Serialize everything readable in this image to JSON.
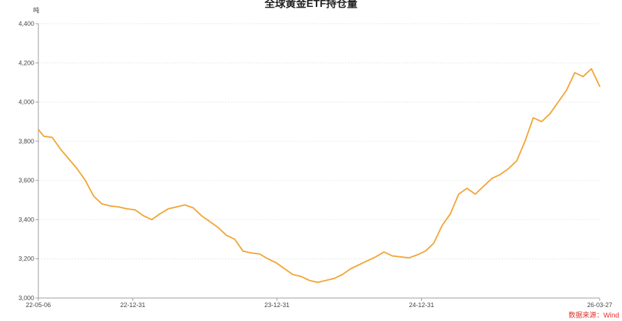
{
  "chart_data": {
    "type": "line",
    "title": "全球黄金ETF持仓量",
    "ylabel": "吨",
    "xlabel": "",
    "source": "数据来源：Wind",
    "color": "#f2a73a",
    "ylim": [
      3000,
      4400
    ],
    "yticks": [
      3000,
      3200,
      3400,
      3600,
      3800,
      4000,
      4200,
      4400
    ],
    "ytick_labels": [
      "3,000",
      "3,200",
      "3,400",
      "3,600",
      "3,800",
      "4,000",
      "4,200",
      "4,400"
    ],
    "xticks": [
      "22-05-06",
      "22-12-31",
      "23-12-31",
      "24-12-31",
      "26-03-27"
    ],
    "grid": true,
    "series": [
      {
        "x": [
          "22-05-06",
          "22-05-20",
          "22-06-10",
          "22-07-01",
          "22-07-22",
          "22-08-12",
          "22-09-02",
          "22-09-23",
          "22-10-14",
          "22-11-04",
          "22-11-25",
          "22-12-16",
          "23-01-06",
          "23-01-27",
          "23-02-17",
          "23-03-10",
          "23-03-31",
          "23-04-21",
          "23-05-12",
          "23-06-02",
          "23-06-23",
          "23-07-14",
          "23-08-04",
          "23-08-25",
          "23-09-15",
          "23-10-06",
          "23-10-27",
          "23-11-17",
          "23-12-08",
          "23-12-29",
          "24-01-19",
          "24-02-09",
          "24-03-01",
          "24-03-22",
          "24-04-12",
          "24-05-03",
          "24-05-24",
          "24-06-14",
          "24-07-05",
          "24-07-26",
          "24-08-16",
          "24-09-06",
          "24-09-27",
          "24-10-18",
          "24-11-08",
          "24-11-29",
          "24-12-20",
          "25-01-10",
          "25-01-31",
          "25-02-21",
          "25-03-14",
          "25-04-04",
          "25-04-25",
          "25-05-16",
          "25-06-06",
          "25-06-27",
          "25-07-18",
          "25-08-08",
          "25-08-29",
          "25-09-19",
          "25-10-10",
          "25-10-31",
          "25-11-21",
          "25-12-12",
          "26-01-02",
          "26-01-23",
          "26-02-13",
          "26-03-06",
          "26-03-27"
        ],
        "y": [
          3860,
          3825,
          3820,
          3760,
          3710,
          3660,
          3600,
          3520,
          3480,
          3470,
          3465,
          3455,
          3450,
          3420,
          3400,
          3430,
          3455,
          3465,
          3475,
          3460,
          3420,
          3390,
          3360,
          3320,
          3300,
          3240,
          3230,
          3225,
          3200,
          3180,
          3150,
          3120,
          3110,
          3090,
          3080,
          3090,
          3100,
          3120,
          3150,
          3170,
          3190,
          3210,
          3235,
          3215,
          3210,
          3205,
          3220,
          3240,
          3280,
          3370,
          3430,
          3530,
          3560,
          3530,
          3570,
          3610,
          3630,
          3660,
          3700,
          3800,
          3920,
          3900,
          3940,
          4000,
          4060,
          4150,
          4130,
          4170,
          4080
        ]
      }
    ]
  }
}
